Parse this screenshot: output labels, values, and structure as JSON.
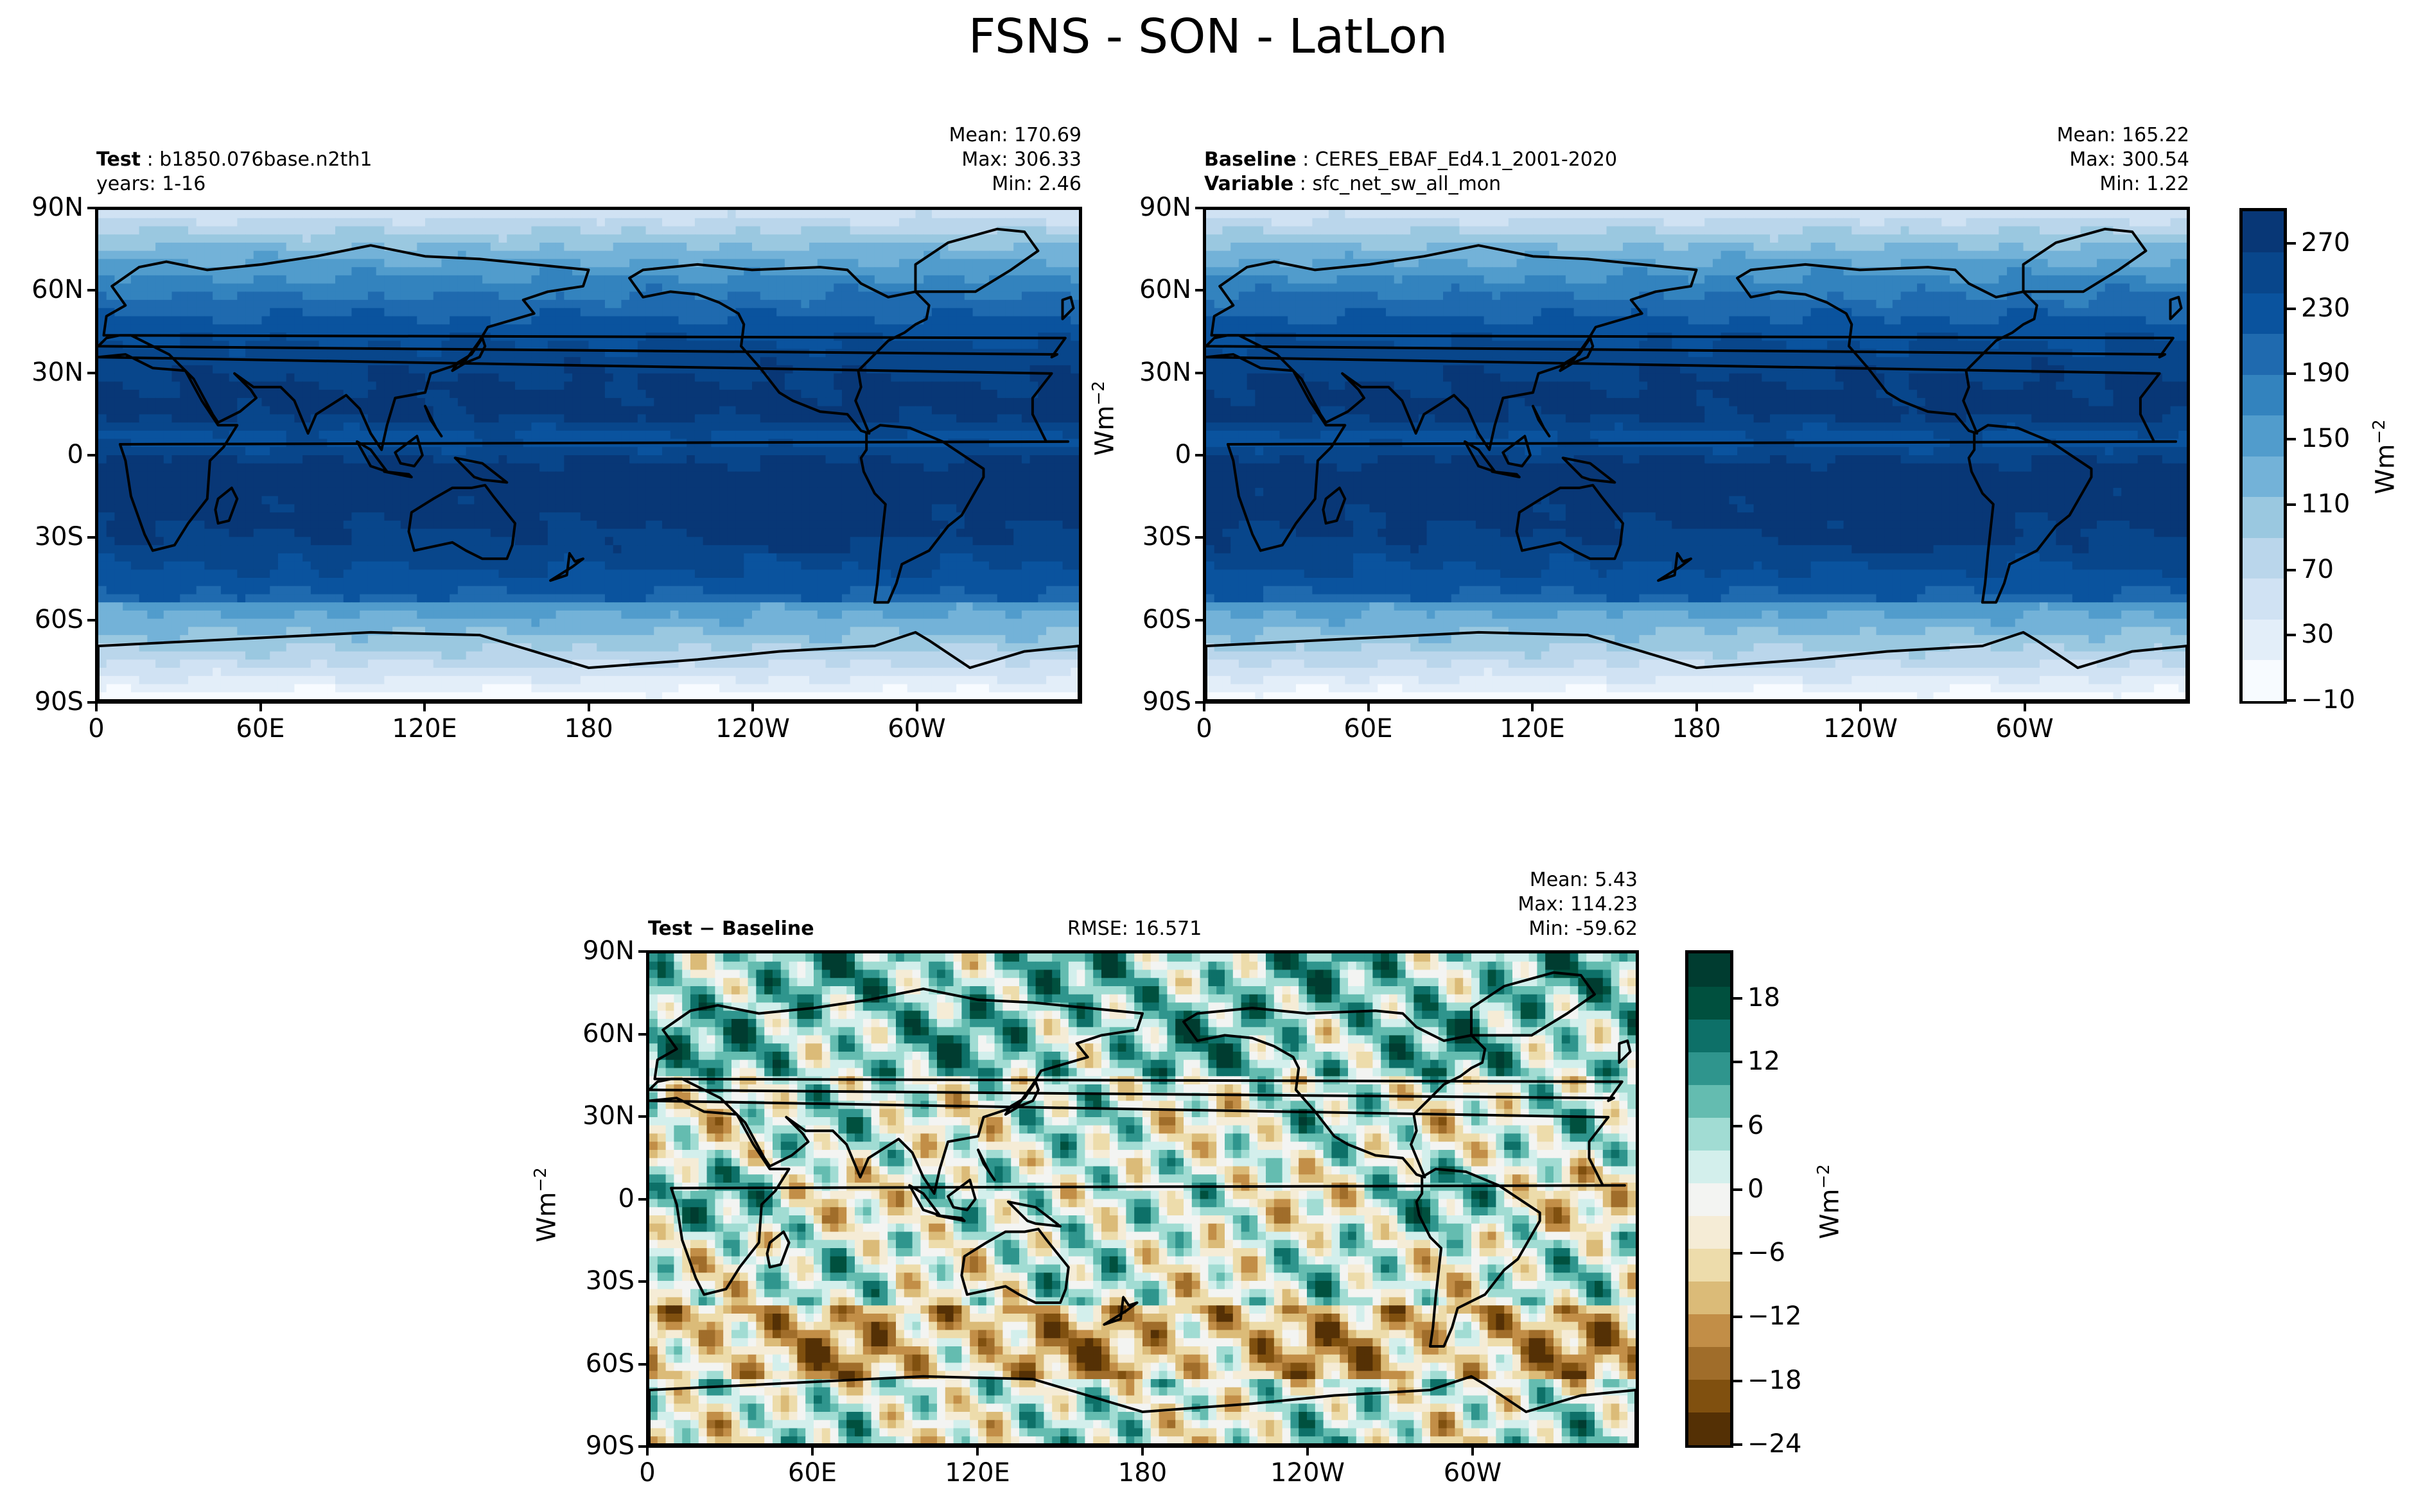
{
  "page_title": "FSNS - SON - LatLon",
  "colors": {
    "blues_scale": [
      "#f7fbff",
      "#e3eef9",
      "#d0e2f3",
      "#bad6eb",
      "#9ac8e0",
      "#73b2d8",
      "#519ccc",
      "#3383be",
      "#1f6aaf",
      "#0a539e",
      "#08468b",
      "#083776"
    ],
    "brbg_scale": [
      "#543005",
      "#80500f",
      "#a06d2a",
      "#c28e47",
      "#dbbb78",
      "#eddcab",
      "#f5ecd6",
      "#f3f4f2",
      "#d3efec",
      "#a1dcd3",
      "#64bcb0",
      "#2f958d",
      "#0d7068",
      "#00503e",
      "#003c30"
    ],
    "coastline": "#000000",
    "missing": "#ffffff"
  },
  "chart_data": [
    {
      "type": "heatmap",
      "panel": "test",
      "header_label": "Test",
      "header_value": "b1850.076base.n2th1",
      "header_line2": "years: 1-16",
      "stats": {
        "mean": "Mean: 170.69",
        "max": "Max: 306.33",
        "min": "Min:  2.46"
      },
      "x_ticks": [
        "0",
        "60E",
        "120E",
        "180",
        "120W",
        "60W"
      ],
      "y_ticks": [
        "90N",
        "60N",
        "30N",
        "0",
        "30S",
        "60S",
        "90S"
      ],
      "colormap": "Blues",
      "value_range": [
        -10,
        290
      ]
    },
    {
      "type": "heatmap",
      "panel": "baseline",
      "header_label": "Baseline",
      "header_value": "CERES_EBAF_Ed4.1_2001-2020",
      "header_label2": "Variable",
      "header_value2": "sfc_net_sw_all_mon",
      "stats": {
        "mean": "Mean: 165.22",
        "max": "Max: 300.54",
        "min": "Min:  1.22"
      },
      "x_ticks": [
        "0",
        "60E",
        "120E",
        "180",
        "120W",
        "60W"
      ],
      "y_ticks": [
        "90N",
        "60N",
        "30N",
        "0",
        "30S",
        "60S",
        "90S"
      ],
      "ylabel": "Wm",
      "ylabel_exp": "−2",
      "colormap": "Blues",
      "value_range": [
        -10,
        290
      ],
      "colorbar": {
        "ticks": [
          "270",
          "230",
          "190",
          "150",
          "110",
          "70",
          "30",
          "−10"
        ],
        "label": "Wm",
        "label_exp": "−2"
      }
    },
    {
      "type": "heatmap",
      "panel": "difference",
      "header_label": "Test − Baseline",
      "rmse": "RMSE: 16.571",
      "stats": {
        "mean": "Mean:  5.43",
        "max": "Max: 114.23",
        "min": "Min: -59.62"
      },
      "x_ticks": [
        "0",
        "60E",
        "120E",
        "180",
        "120W",
        "60W"
      ],
      "y_ticks": [
        "90N",
        "60N",
        "30N",
        "0",
        "30S",
        "60S",
        "90S"
      ],
      "ylabel": "Wm",
      "ylabel_exp": "−2",
      "colormap": "BrBG",
      "value_range": [
        -24,
        21
      ],
      "colorbar": {
        "ticks": [
          "18",
          "12",
          "6",
          "0",
          "−6",
          "−12",
          "−18",
          "−24"
        ],
        "label": "Wm",
        "label_exp": "−2"
      }
    }
  ]
}
